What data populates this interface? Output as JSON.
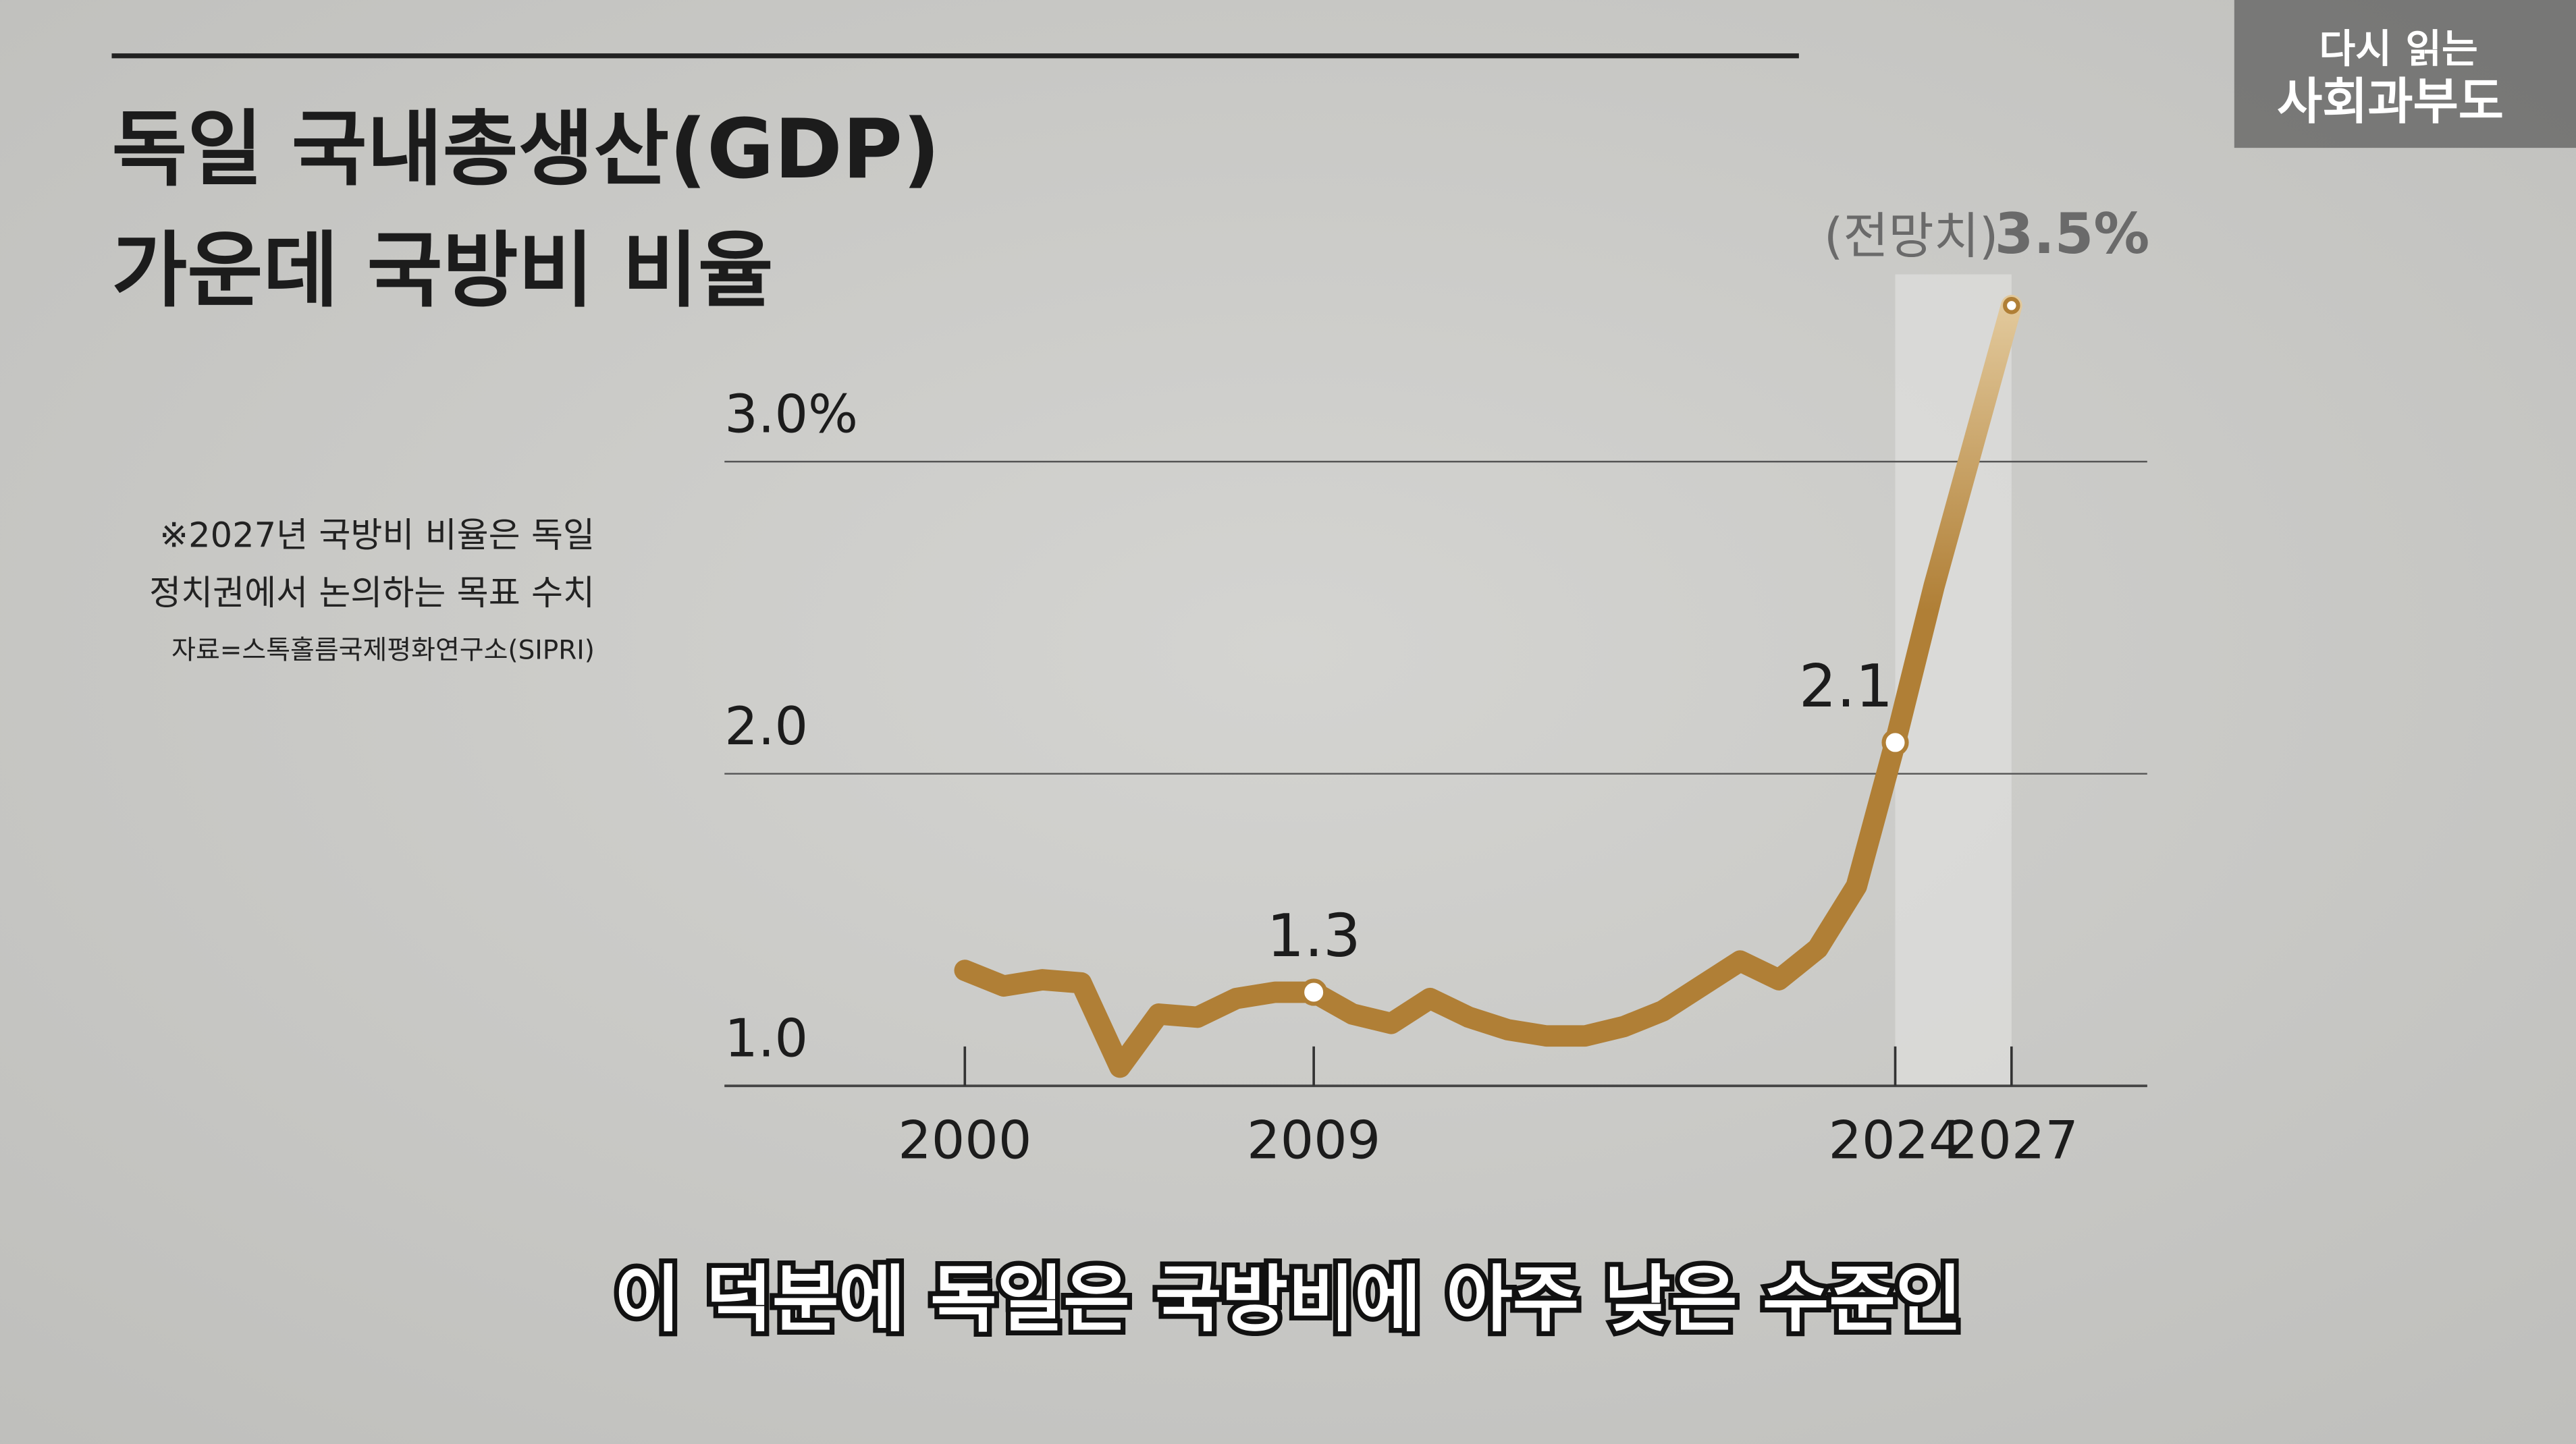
{
  "header": {
    "logo_top": "다시 읽는",
    "logo_bottom": "사회과부도"
  },
  "chart_data": {
    "type": "line",
    "title": [
      "독일 국내총생산(GDP)",
      "가운데 국방비 비율"
    ],
    "notes": [
      "※2027년 국방비 비율은 독일",
      "정치권에서 논의하는 목표 수치",
      "자료=스톡홀름국제평화연구소(SIPRI)"
    ],
    "annotation": "(전망치)",
    "x": [
      2000,
      2001,
      2002,
      2003,
      2004,
      2005,
      2006,
      2007,
      2008,
      2009,
      2010,
      2011,
      2012,
      2013,
      2014,
      2015,
      2016,
      2017,
      2018,
      2019,
      2020,
      2021,
      2022,
      2023,
      2024,
      2025,
      2026,
      2027
    ],
    "values": [
      1.37,
      1.32,
      1.34,
      1.33,
      1.06,
      1.23,
      1.22,
      1.28,
      1.3,
      1.3,
      1.23,
      1.2,
      1.28,
      1.22,
      1.18,
      1.16,
      1.16,
      1.19,
      1.24,
      1.32,
      1.4,
      1.34,
      1.44,
      1.64,
      2.1,
      2.6,
      3.05,
      3.5
    ],
    "value_labels": [
      null,
      null,
      null,
      null,
      null,
      null,
      null,
      null,
      null,
      null,
      null,
      null,
      null,
      null,
      null,
      null,
      null,
      null,
      null,
      null,
      null,
      null,
      null,
      null,
      null,
      null,
      null,
      "3.5%"
    ],
    "labeled_points": [
      9,
      24,
      27
    ],
    "color": "#b07f36",
    "xlim": [
      1993.8,
      2030.5
    ],
    "xticks": [
      2000,
      2009,
      2024,
      2027
    ],
    "ylim": [
      1,
      3.6
    ],
    "yticks": [
      {
        "value": 1,
        "label": "1.0"
      },
      {
        "value": 2,
        "label": "2.0"
      },
      {
        "value": 3,
        "label": "3.0%"
      }
    ],
    "projection_from": 2024,
    "grid": true
  },
  "subtitle": "이 덕분에 독일은 국방비에 아주 낮은 수준인"
}
